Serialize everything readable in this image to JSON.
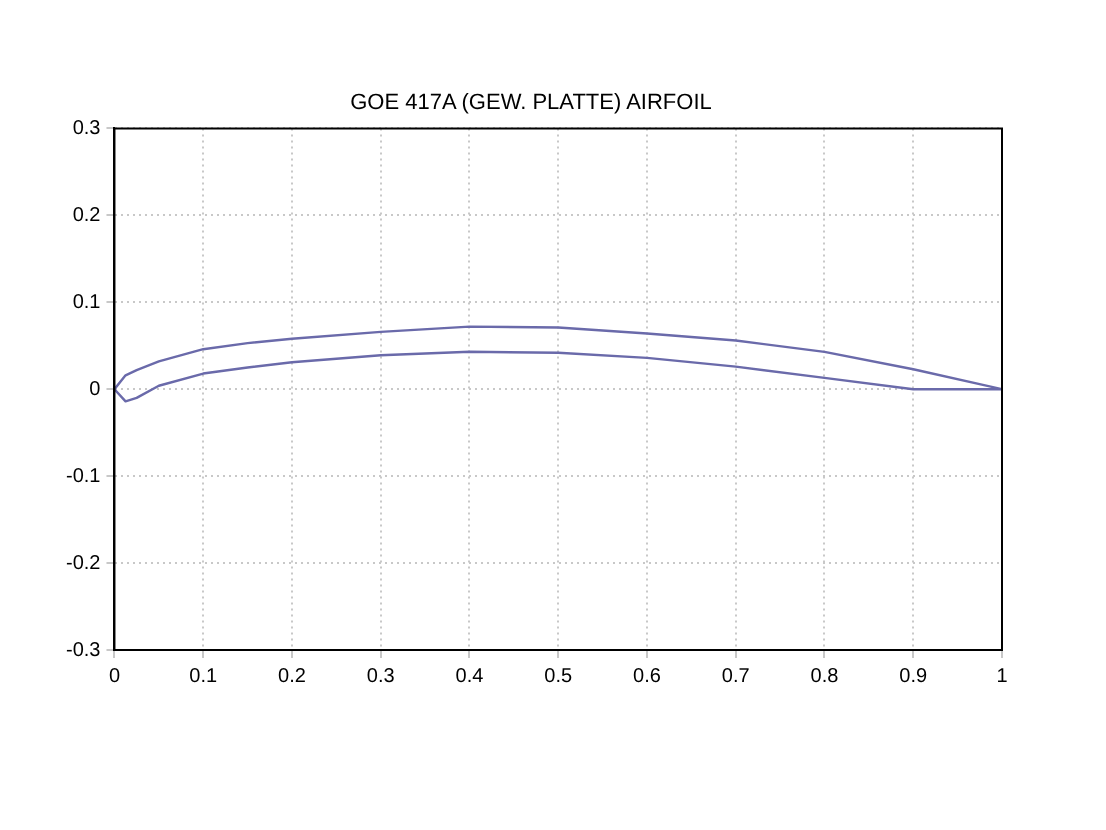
{
  "chart_data": {
    "type": "line",
    "title": "GOE 417A (GEW. PLATTE) AIRFOIL",
    "series": [
      {
        "color": "#6a6aaa",
        "x": [
          0,
          0.0125,
          0.025,
          0.05,
          0.1,
          0.15,
          0.2,
          0.3,
          0.4,
          0.5,
          0.6,
          0.7,
          0.8,
          0.9,
          1
        ],
        "values": [
          0,
          0.016,
          0.022,
          0.032,
          0.046,
          0.053,
          0.058,
          0.066,
          0.072,
          0.071,
          0.064,
          0.056,
          0.043,
          0.023,
          0
        ]
      },
      {
        "color": "#6a6aaa",
        "x": [
          0,
          0.0125,
          0.025,
          0.05,
          0.1,
          0.15,
          0.2,
          0.3,
          0.4,
          0.5,
          0.6,
          0.7,
          0.8,
          0.9,
          0.95,
          1
        ],
        "values": [
          0,
          -0.014,
          -0.01,
          0.004,
          0.018,
          0.025,
          0.031,
          0.039,
          0.043,
          0.042,
          0.036,
          0.026,
          0.013,
          0,
          0,
          0
        ]
      }
    ],
    "xlim": [
      0,
      1
    ],
    "xticks": [
      0,
      0.1,
      0.2,
      0.3,
      0.4,
      0.5,
      0.6,
      0.7,
      0.8,
      0.9,
      1
    ],
    "ylim": [
      -0.3,
      0.3
    ],
    "yticks": [
      -0.3,
      -0.2,
      -0.1,
      0,
      0.1,
      0.2,
      0.3
    ],
    "grid": true,
    "legend": false,
    "marker": "none",
    "line_style": "solid"
  }
}
